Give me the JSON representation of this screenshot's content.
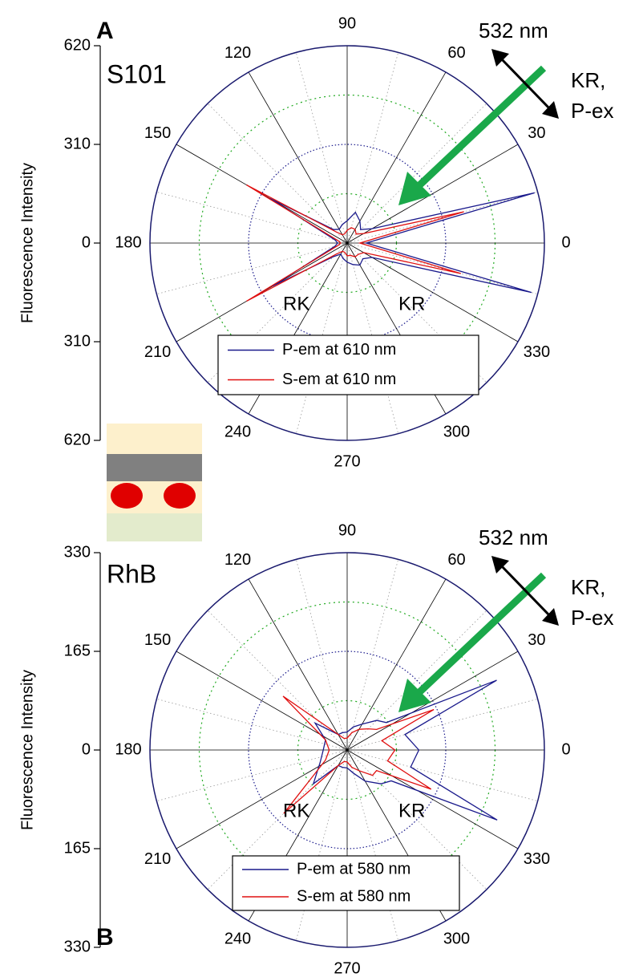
{
  "chart_data": [
    {
      "type": "polar",
      "label": "A",
      "sample": "S101",
      "ylabel": "Fluorescence Intensity",
      "wavelength": "532 nm",
      "polarization": [
        "KR,",
        "P-ex"
      ],
      "left_note": "RK",
      "right_note": "KR",
      "rlim": [
        0,
        620
      ],
      "rticks": [
        155,
        310,
        465
      ],
      "ylim": [
        -620,
        620
      ],
      "yticks": [
        {
          "value": -620,
          "label": "620"
        },
        {
          "value": -310,
          "label": "310"
        },
        0,
        310,
        620
      ],
      "thetaticks": [
        0,
        30,
        60,
        90,
        120,
        150,
        180,
        210,
        240,
        270,
        300,
        330
      ],
      "x": [
        0,
        15,
        30,
        45,
        60,
        75,
        90,
        105,
        120,
        135,
        150,
        165,
        180,
        195,
        210,
        225,
        240,
        255,
        270,
        285,
        300,
        315,
        330,
        345
      ],
      "series": [
        {
          "name": "P-em at 610 nm",
          "color": "#1a1a8c",
          "values": [
            60,
            610,
            90,
            60,
            80,
            100,
            70,
            60,
            50,
            60,
            280,
            40,
            30,
            40,
            270,
            60,
            40,
            50,
            60,
            70,
            80,
            70,
            90,
            600
          ]
        },
        {
          "name": "S-em at 610 nm",
          "color": "#e01010",
          "values": [
            40,
            380,
            60,
            40,
            50,
            50,
            40,
            30,
            30,
            50,
            365,
            30,
            20,
            30,
            365,
            50,
            30,
            30,
            40,
            40,
            50,
            50,
            60,
            370
          ]
        }
      ]
    },
    {
      "type": "polar",
      "label": "B",
      "sample": "RhB",
      "ylabel": "Fluorescence Intensity",
      "wavelength": "532 nm",
      "polarization": [
        "KR,",
        "P-ex"
      ],
      "left_note": "RK",
      "right_note": "KR",
      "rlim": [
        0,
        330
      ],
      "rticks": [
        82.5,
        165,
        247.5
      ],
      "ylim": [
        -330,
        330
      ],
      "yticks": [
        {
          "value": -330,
          "label": "330"
        },
        {
          "value": -165,
          "label": "165"
        },
        0,
        165,
        330
      ],
      "thetaticks": [
        0,
        30,
        60,
        90,
        120,
        150,
        180,
        210,
        240,
        270,
        300,
        330
      ],
      "x": [
        0,
        15,
        25,
        35,
        45,
        60,
        75,
        90,
        105,
        120,
        140,
        155,
        180,
        205,
        225,
        240,
        255,
        270,
        285,
        300,
        315,
        325,
        335,
        345
      ],
      "series": [
        {
          "name": "P-em at 580 nm",
          "color": "#1a1a8c",
          "values": [
            120,
            100,
            276,
            80,
            70,
            50,
            40,
            30,
            30,
            30,
            70,
            40,
            40,
            50,
            80,
            30,
            30,
            30,
            40,
            60,
            80,
            90,
            277,
            110
          ]
        },
        {
          "name": "S-em at 580 nm",
          "color": "#e01010",
          "values": [
            80,
            60,
            160,
            60,
            50,
            40,
            30,
            20,
            20,
            30,
            140,
            40,
            30,
            40,
            150,
            30,
            20,
            20,
            30,
            40,
            60,
            60,
            155,
            70
          ]
        }
      ]
    }
  ]
}
